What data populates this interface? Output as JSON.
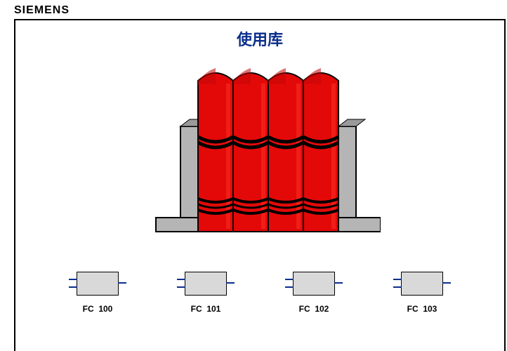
{
  "brand": {
    "text": "SIEMENS",
    "color": "#000000",
    "fontsize": 16
  },
  "title": {
    "text": "使用库",
    "color": "#0b2e8a",
    "fontsize": 22
  },
  "library": {
    "type": "infographic",
    "book_count": 4,
    "book_fill": "#e40909",
    "book_highlight": "#ff3a2a",
    "book_top_shade": "#c20606",
    "stripe_color": "#000000",
    "bookend_fill": "#b5b5b5",
    "bookend_stroke": "#000000",
    "background": "#ffffff"
  },
  "fc_blocks": {
    "type": "infographic",
    "block_fill": "#d9d9d9",
    "block_stroke": "#000000",
    "pin_color": "#0b2e8a",
    "label_color": "#000000",
    "label_fontsize": 12,
    "items": [
      {
        "label": "FC  100"
      },
      {
        "label": "FC  101"
      },
      {
        "label": "FC  102"
      },
      {
        "label": "FC  103"
      }
    ]
  }
}
